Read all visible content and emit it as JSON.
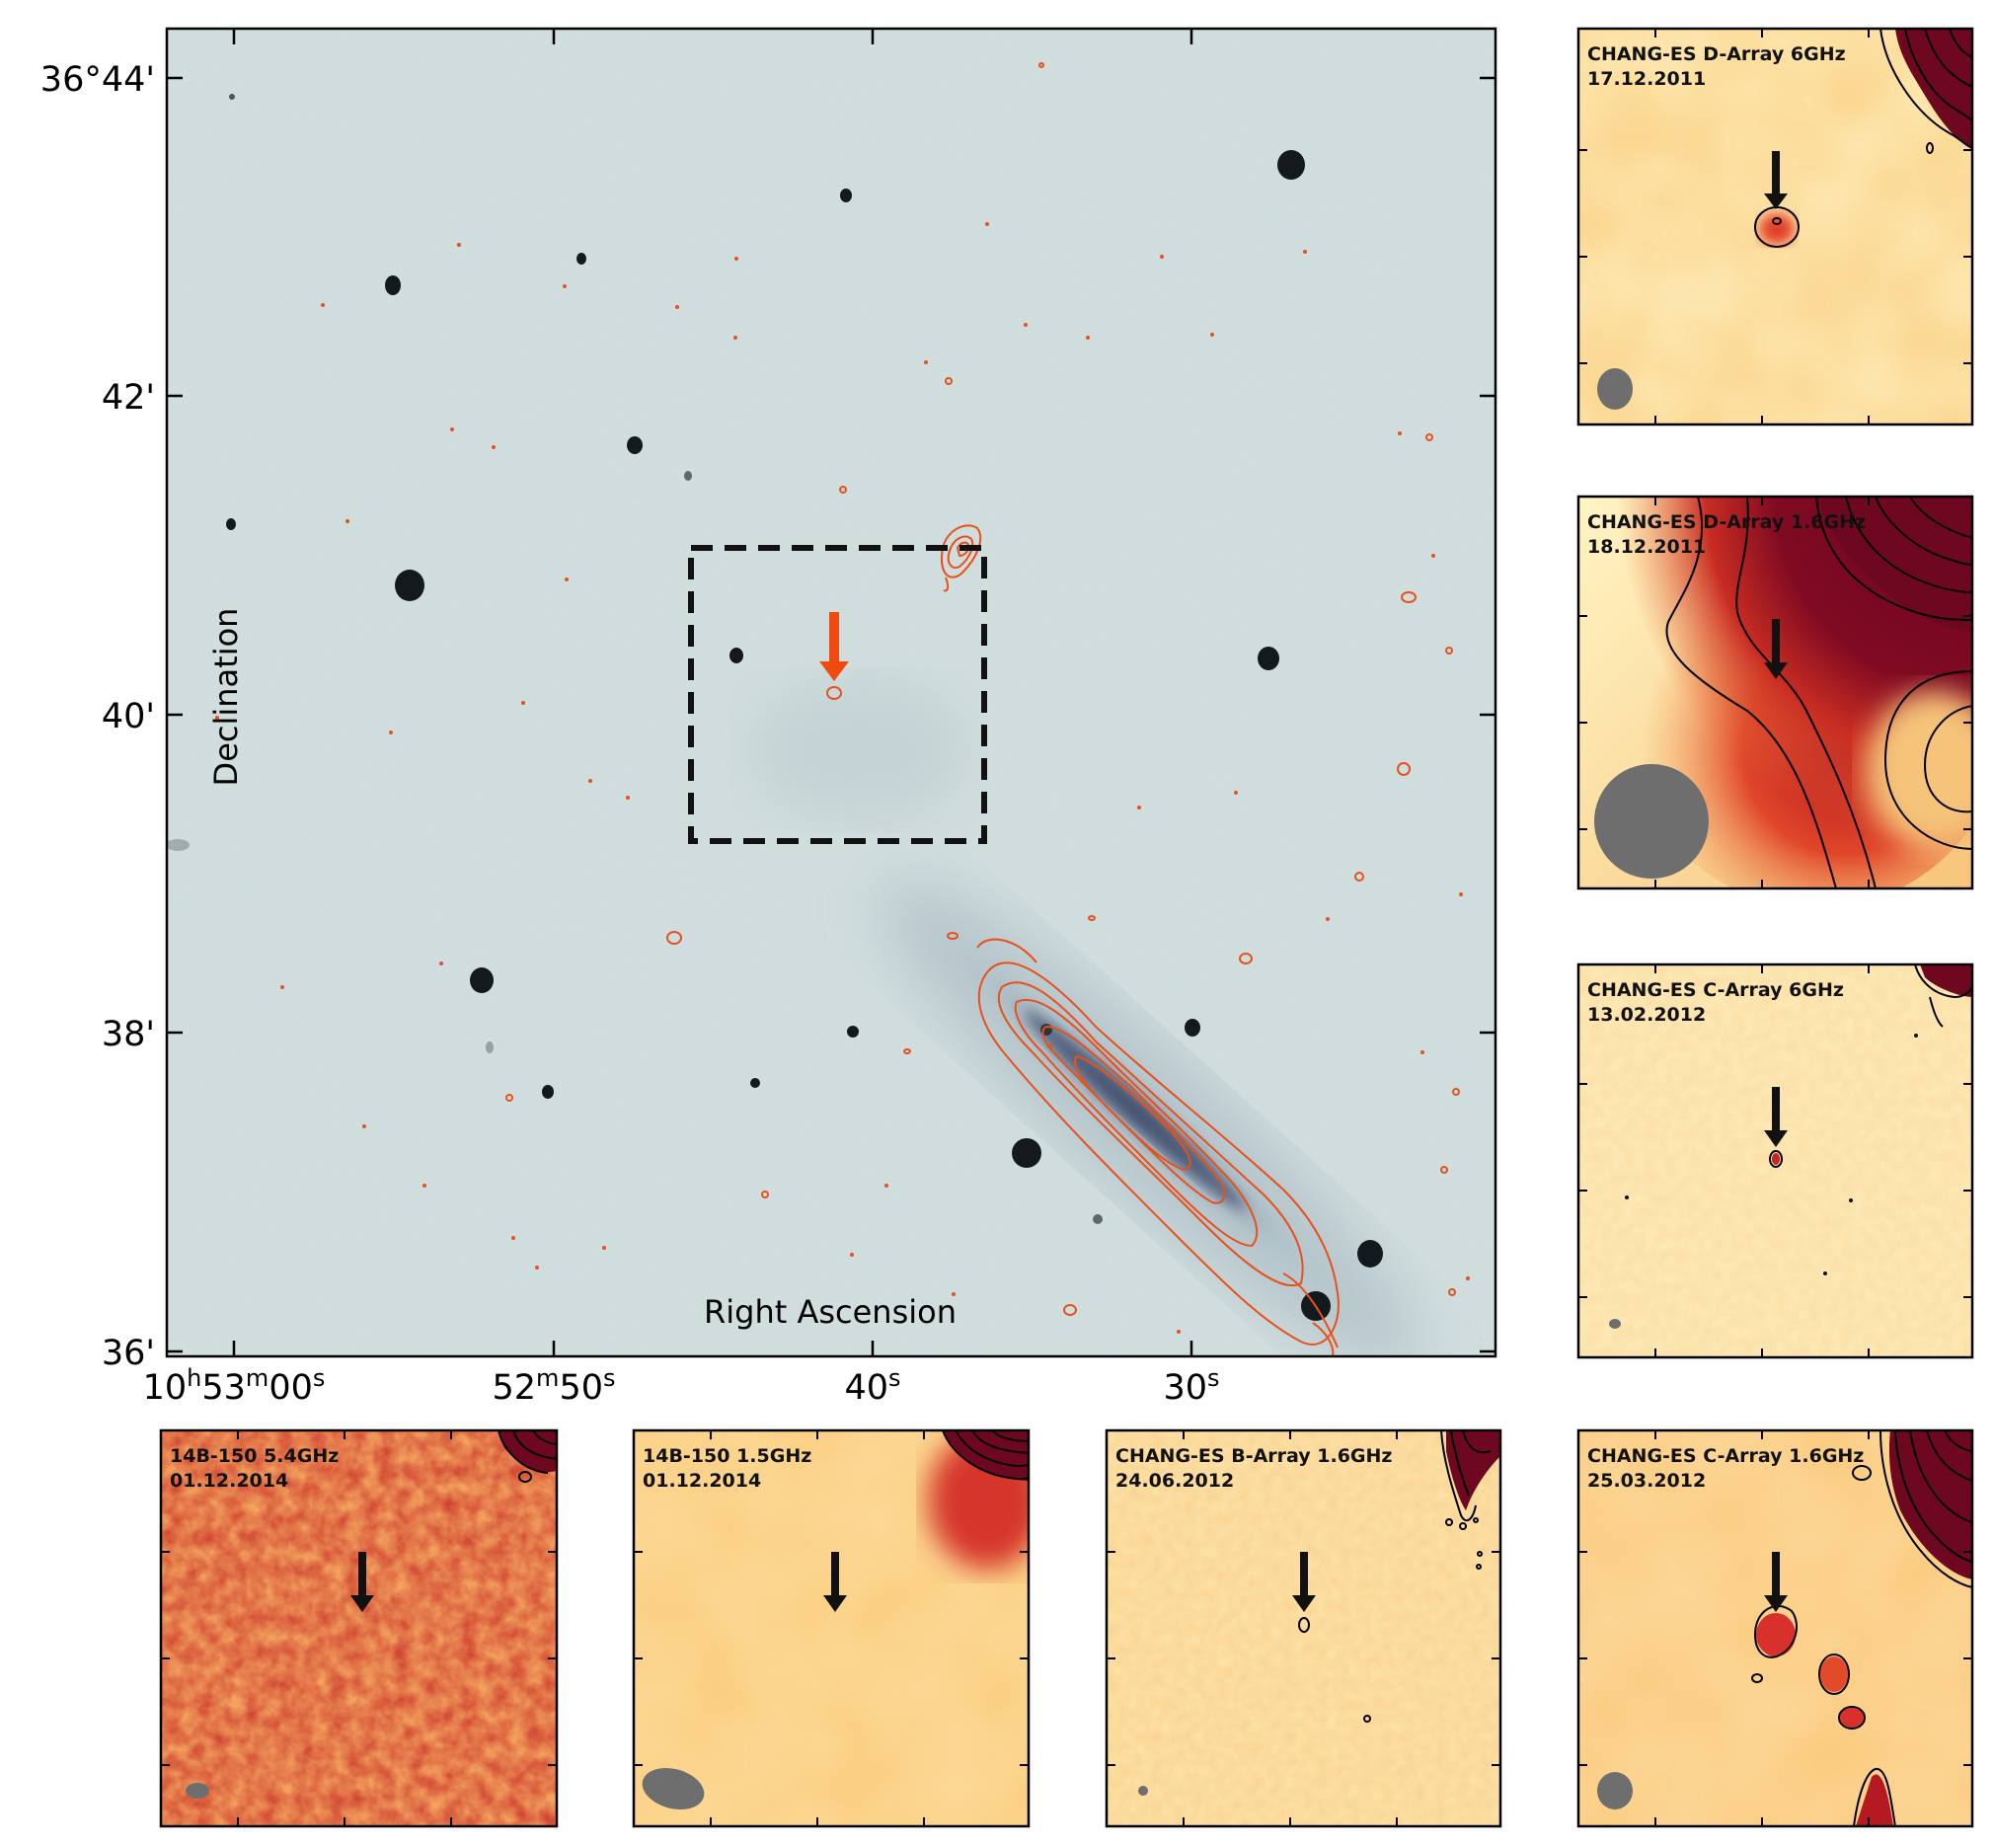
{
  "main_panel": {
    "dec_ticks": [
      "36°44'",
      "42'",
      "40'",
      "38'",
      "36'"
    ],
    "ra_ticks": [
      {
        "h": "10",
        "hu": "h",
        "m": "53",
        "mu": "m",
        "s": "00",
        "su": "s"
      },
      {
        "m": "52",
        "mu": "m",
        "s": "50",
        "su": "s"
      },
      {
        "s": "40",
        "su": "s"
      },
      {
        "s": "30",
        "su": "s"
      }
    ],
    "xlabel": "Right Ascension",
    "ylabel": "Declination",
    "colors": {
      "background": "#cfdcdc",
      "contour": "#e8501c",
      "arrow": "#f04a10",
      "box": "#111111"
    }
  },
  "side_panels": [
    {
      "id": "a",
      "title": "CHANG-ES D-Array 6GHz",
      "date": "17.12.2011"
    },
    {
      "id": "b",
      "title": "CHANG-ES D-Array 1.6GHz",
      "date": "18.12.2011"
    },
    {
      "id": "c",
      "title": "CHANG-ES C-Array 6GHz",
      "date": "13.02.2012"
    },
    {
      "id": "d",
      "title": "14B-150 5.4GHz",
      "date": "01.12.2014"
    },
    {
      "id": "e",
      "title": "14B-150 1.5GHz",
      "date": "01.12.2014"
    },
    {
      "id": "f",
      "title": "CHANG-ES B-Array 1.6GHz",
      "date": "24.06.2012"
    },
    {
      "id": "g",
      "title": "CHANG-ES C-Array 1.6GHz",
      "date": "25.03.2012"
    }
  ]
}
